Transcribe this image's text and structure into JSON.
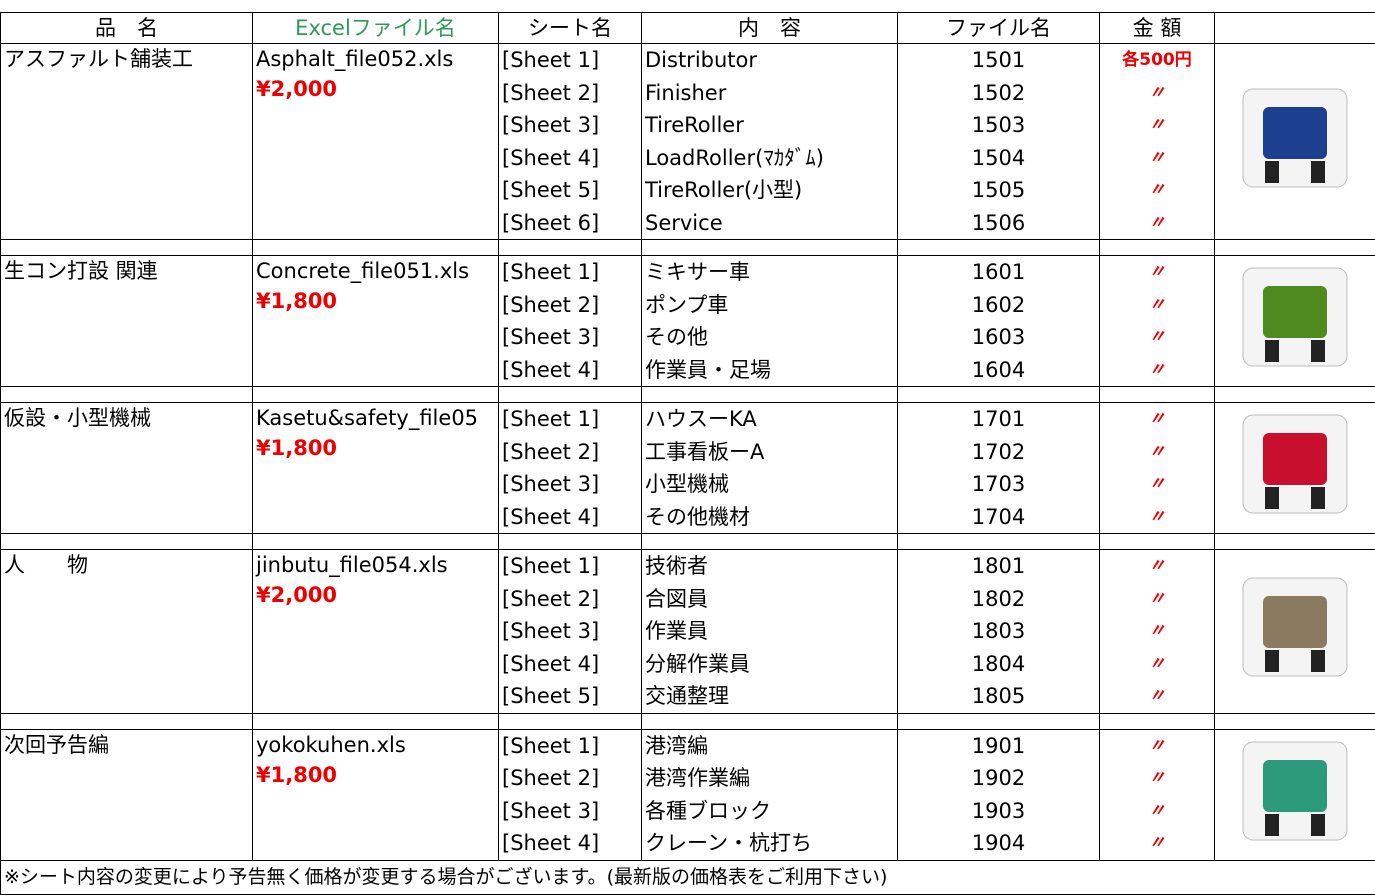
{
  "header": {
    "item": "品　名",
    "excel": "Excelファイル名",
    "sheet": "シート名",
    "content": "内　容",
    "file_no": "ファイル名",
    "amount": "金 額"
  },
  "sections": [
    {
      "item": "アスファルト舗装工",
      "file": "Asphalt_file052.xls",
      "price": "¥2,000",
      "rows": [
        [
          "[Sheet 1]",
          "Distributor",
          "1501",
          "各500円"
        ],
        [
          "[Sheet 2]",
          "Finisher",
          "1502",
          "〃"
        ],
        [
          "[Sheet 3]",
          "TireRoller",
          "1503",
          "〃"
        ],
        [
          "[Sheet 4]",
          "LoadRoller(ﾏｶﾀﾞﾑ)",
          "1504",
          "〃"
        ],
        [
          "[Sheet 5]",
          "TireRoller(小型)",
          "1505",
          "〃"
        ],
        [
          "[Sheet 6]",
          "Service",
          "1506",
          "〃"
        ]
      ]
    },
    {
      "item": "生コン打設 関連",
      "file": "Concrete_file051.xls",
      "price": "¥1,800",
      "rows": [
        [
          "[Sheet 1]",
          "ミキサー車",
          "1601",
          "〃"
        ],
        [
          "[Sheet 2]",
          "ポンプ車",
          "1602",
          "〃"
        ],
        [
          "[Sheet 3]",
          "その他",
          "1603",
          "〃"
        ],
        [
          "[Sheet 4]",
          "作業員・足場",
          "1604",
          "〃"
        ]
      ]
    },
    {
      "item": "仮設・小型機械",
      "file": "Kasetu&safety_file05",
      "price": "¥1,800",
      "rows": [
        [
          "[Sheet 1]",
          "ハウスーKA",
          "1701",
          "〃"
        ],
        [
          "[Sheet 2]",
          "工事看板ーA",
          "1702",
          "〃"
        ],
        [
          "[Sheet 3]",
          "小型機械",
          "1703",
          "〃"
        ],
        [
          "[Sheet 4]",
          "その他機材",
          "1704",
          "〃"
        ]
      ]
    },
    {
      "item": "人　　物",
      "file": "jinbutu_file054.xls",
      "price": "¥2,000",
      "rows": [
        [
          "[Sheet 1]",
          "技術者",
          "1801",
          "〃"
        ],
        [
          "[Sheet 2]",
          "合図員",
          "1802",
          "〃"
        ],
        [
          "[Sheet 3]",
          "作業員",
          "1803",
          "〃"
        ],
        [
          "[Sheet 4]",
          "分解作業員",
          "1804",
          "〃"
        ],
        [
          "[Sheet 5]",
          "交通整理",
          "1805",
          "〃"
        ]
      ]
    },
    {
      "item": "次回予告編",
      "file": "yokokuhen.xls",
      "price": "¥1,800",
      "rows": [
        [
          "[Sheet 1]",
          "港湾編",
          "1901",
          "〃"
        ],
        [
          "[Sheet 2]",
          "港湾作業編",
          "1902",
          "〃"
        ],
        [
          "[Sheet 3]",
          "各種ブロック",
          "1903",
          "〃"
        ],
        [
          "[Sheet 4]",
          "クレーン・杭打ち",
          "1904",
          "〃"
        ]
      ]
    }
  ],
  "footer": "※シート内容の変更により予告無く価格が変更する場合がございます。(最新版の価格表をご利用下さい)"
}
